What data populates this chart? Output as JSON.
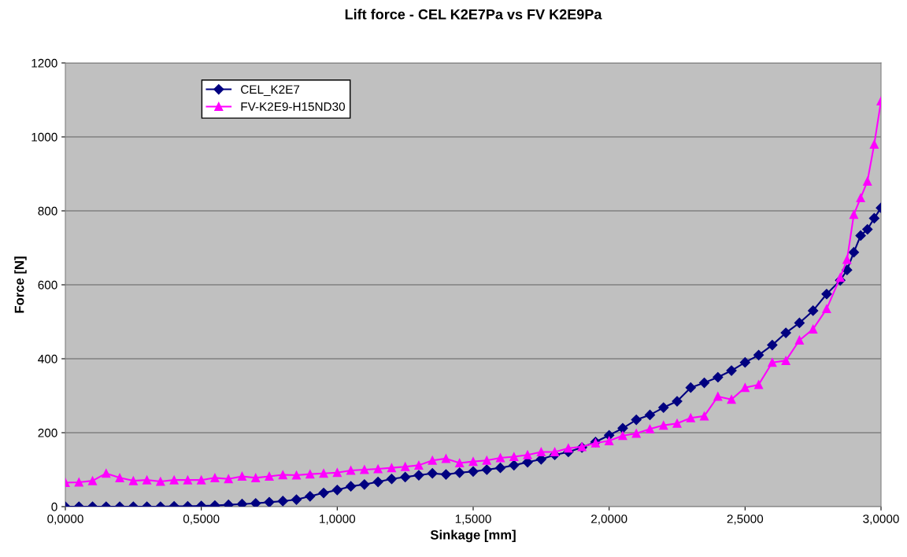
{
  "chart_data": {
    "type": "line",
    "title": "Lift force - CEL K2E7Pa vs FV K2E9Pa",
    "xlabel": "Sinkage [mm]",
    "ylabel": "Force [N]",
    "x": [
      0,
      0.05,
      0.1,
      0.15,
      0.2,
      0.25,
      0.3,
      0.35,
      0.4,
      0.45,
      0.5,
      0.55,
      0.6,
      0.65,
      0.7,
      0.75,
      0.8,
      0.85,
      0.9,
      0.95,
      1.0,
      1.05,
      1.1,
      1.15,
      1.2,
      1.25,
      1.3,
      1.35,
      1.4,
      1.45,
      1.5,
      1.55,
      1.6,
      1.65,
      1.7,
      1.75,
      1.8,
      1.85,
      1.9,
      1.95,
      2.0,
      2.05,
      2.1,
      2.15,
      2.2,
      2.25,
      2.3,
      2.35,
      2.4,
      2.45,
      2.5,
      2.55,
      2.6,
      2.65,
      2.7,
      2.75,
      2.8,
      2.85,
      2.875,
      2.9,
      2.925,
      2.95,
      2.975,
      3.0
    ],
    "series": [
      {
        "name": "CEL_K2E7",
        "color": "#000080",
        "marker": "diamond",
        "values": [
          0,
          0,
          0,
          0,
          0,
          0,
          0,
          0,
          1,
          1,
          2,
          3,
          5,
          7,
          9,
          12,
          15,
          19,
          28,
          37,
          45,
          55,
          60,
          67,
          75,
          80,
          85,
          90,
          87,
          92,
          95,
          100,
          105,
          112,
          120,
          128,
          140,
          148,
          160,
          175,
          193,
          212,
          235,
          248,
          268,
          285,
          322,
          335,
          350,
          368,
          390,
          410,
          437,
          470,
          497,
          530,
          575,
          612,
          640,
          688,
          733,
          750,
          780,
          808
        ]
      },
      {
        "name": "FV-K2E9-H15ND30",
        "color": "#ff00ff",
        "marker": "triangle",
        "values": [
          65,
          66,
          70,
          90,
          78,
          70,
          72,
          68,
          72,
          72,
          72,
          78,
          75,
          82,
          78,
          82,
          86,
          85,
          88,
          90,
          92,
          98,
          100,
          102,
          105,
          108,
          112,
          125,
          130,
          118,
          122,
          125,
          132,
          135,
          140,
          148,
          148,
          158,
          162,
          172,
          178,
          192,
          198,
          210,
          220,
          225,
          240,
          245,
          298,
          290,
          322,
          330,
          390,
          395,
          450,
          480,
          535,
          620,
          668,
          790,
          835,
          880,
          980,
          1097
        ]
      }
    ],
    "xlim": [
      0,
      3
    ],
    "xticks": [
      {
        "value": 0,
        "label": "0,0000"
      },
      {
        "value": 0.5,
        "label": "0,5000"
      },
      {
        "value": 1,
        "label": "1,0000"
      },
      {
        "value": 1.5,
        "label": "1,5000"
      },
      {
        "value": 2,
        "label": "2,0000"
      },
      {
        "value": 2.5,
        "label": "2,5000"
      },
      {
        "value": 3,
        "label": "3,0000"
      }
    ],
    "ylim": [
      0,
      1200
    ],
    "yticks": [
      0,
      200,
      400,
      600,
      800,
      1000,
      1200
    ],
    "grid": "y",
    "legend": "top left"
  }
}
